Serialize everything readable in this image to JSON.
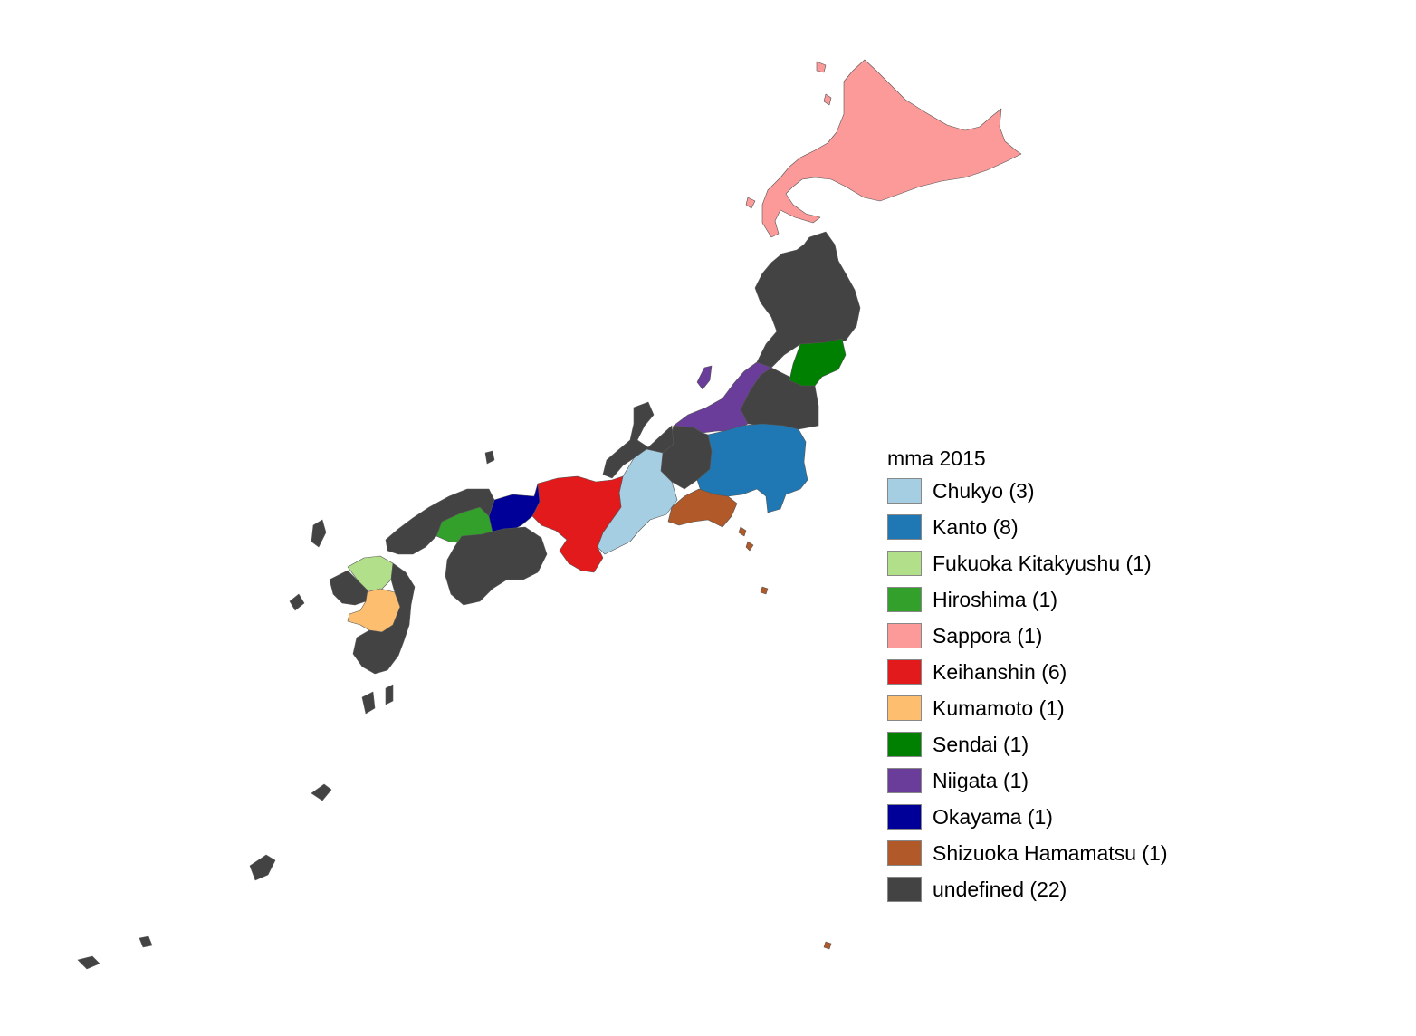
{
  "legend": {
    "title": "mma 2015",
    "items": [
      {
        "id": "chukyo",
        "label": "Chukyo (3)",
        "color": "#a6cee3"
      },
      {
        "id": "kanto",
        "label": "Kanto (8)",
        "color": "#1f78b4"
      },
      {
        "id": "fukuoka",
        "label": "Fukuoka Kitakyushu (1)",
        "color": "#b2df8a"
      },
      {
        "id": "hiroshima",
        "label": "Hiroshima (1)",
        "color": "#33a02c"
      },
      {
        "id": "sappora",
        "label": "Sappora (1)",
        "color": "#fb9a99"
      },
      {
        "id": "keihanshin",
        "label": "Keihanshin (6)",
        "color": "#e31a1c"
      },
      {
        "id": "kumamoto",
        "label": "Kumamoto (1)",
        "color": "#fdbf6f"
      },
      {
        "id": "sendai",
        "label": "Sendai (1)",
        "color": "#008000"
      },
      {
        "id": "niigata",
        "label": "Niigata (1)",
        "color": "#6a3d9a"
      },
      {
        "id": "okayama",
        "label": "Okayama (1)",
        "color": "#000099"
      },
      {
        "id": "shizuoka",
        "label": "Shizuoka Hamamatsu (1)",
        "color": "#b15928"
      },
      {
        "id": "undefined",
        "label": "undefined (22)",
        "color": "#434343"
      }
    ]
  }
}
